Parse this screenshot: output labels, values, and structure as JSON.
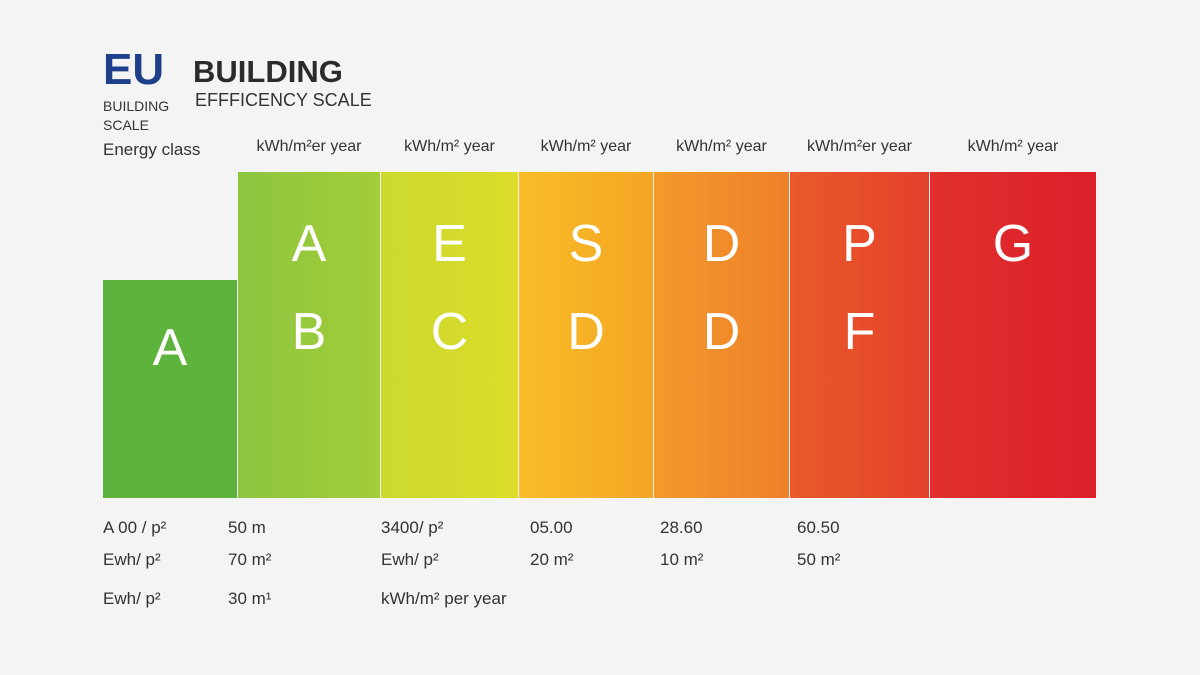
{
  "header": {
    "logo": "EU",
    "logo_sub1": "BUILDING",
    "logo_sub2": "SCALE",
    "title": "BUILDING",
    "subtitle": "EFFFICENCY SCALE"
  },
  "columns": [
    {
      "header": "Energy class",
      "letters": [
        "A"
      ]
    },
    {
      "header": "kWh/m²er year",
      "letters": [
        "A",
        "B"
      ]
    },
    {
      "header": "kWh/m² year",
      "letters": [
        "E",
        "C"
      ]
    },
    {
      "header": "kWh/m² year",
      "letters": [
        "S",
        "D"
      ]
    },
    {
      "header": "kWh/m² year",
      "letters": [
        "D",
        "D"
      ]
    },
    {
      "header": "kWh/m²er year",
      "letters": [
        "P",
        "F"
      ]
    },
    {
      "header": "kWh/m² year",
      "letters": [
        "G"
      ]
    }
  ],
  "table": {
    "rows": [
      [
        "A 00 / p²",
        "50 m",
        "3400/ p²",
        "05.00",
        "28.60",
        "60.50"
      ],
      [
        "Ewh/ p²",
        "70 m²",
        "Ewh/ p²",
        "20 m²",
        "10 m²",
        "50 m²"
      ],
      [
        "Ewh/ p²",
        "30 m¹",
        "kWh/m² per year"
      ]
    ]
  }
}
